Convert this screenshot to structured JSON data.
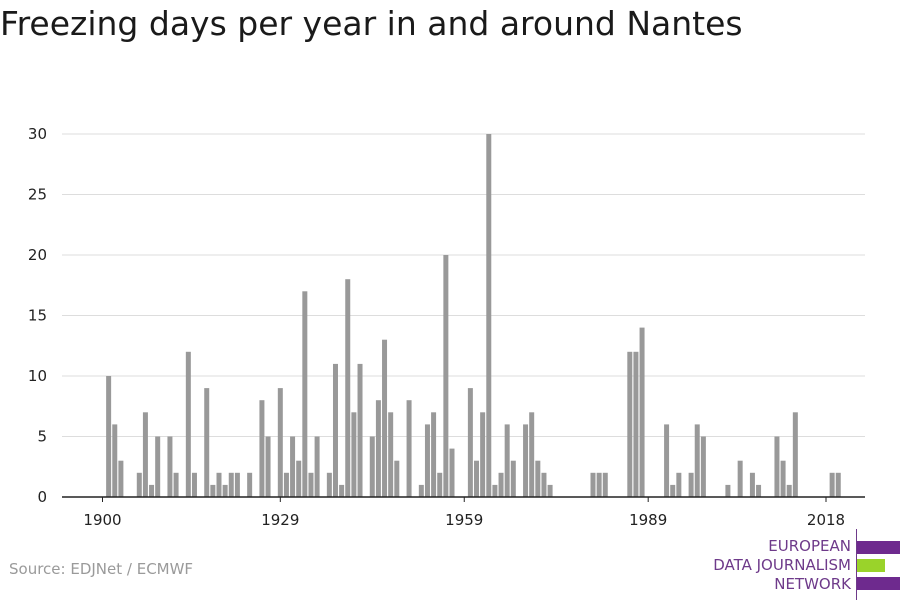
{
  "title": "Freezing days per year in and around Nantes",
  "source": "Source: EDJNet / ECMWF",
  "logo": {
    "lines": [
      "EUROPEAN",
      "DATA JOURNALISM",
      "NETWORK"
    ],
    "colors": {
      "purple": "#6e2a8e",
      "green": "#9ad32a"
    }
  },
  "colors": {
    "bar": "#999999",
    "grid": "#dddddd",
    "axis": "#222222"
  },
  "chart_data": {
    "type": "bar",
    "title": "Freezing days per year in and around Nantes",
    "xlabel": "",
    "ylabel": "",
    "ylim": [
      0,
      30
    ],
    "y_ticks": [
      0,
      5,
      10,
      15,
      20,
      25,
      30
    ],
    "x_ticks": [
      1900,
      1929,
      1959,
      1989,
      2018
    ],
    "grid": true,
    "years": [
      1900,
      1901,
      1902,
      1903,
      1904,
      1905,
      1906,
      1907,
      1908,
      1909,
      1910,
      1911,
      1912,
      1913,
      1914,
      1915,
      1916,
      1917,
      1918,
      1919,
      1920,
      1921,
      1922,
      1923,
      1924,
      1925,
      1926,
      1927,
      1928,
      1929,
      1930,
      1931,
      1932,
      1933,
      1934,
      1935,
      1936,
      1937,
      1938,
      1939,
      1940,
      1941,
      1942,
      1943,
      1944,
      1945,
      1946,
      1947,
      1948,
      1949,
      1950,
      1951,
      1952,
      1953,
      1954,
      1955,
      1956,
      1957,
      1958,
      1959,
      1960,
      1961,
      1962,
      1963,
      1964,
      1965,
      1966,
      1967,
      1968,
      1969,
      1970,
      1971,
      1972,
      1973,
      1974,
      1975,
      1976,
      1977,
      1978,
      1979,
      1980,
      1981,
      1982,
      1983,
      1984,
      1985,
      1986,
      1987,
      1988,
      1989,
      1990,
      1991,
      1992,
      1993,
      1994,
      1995,
      1996,
      1997,
      1998,
      1999,
      2000,
      2001,
      2002,
      2003,
      2004,
      2005,
      2006,
      2007,
      2008,
      2009,
      2010,
      2011,
      2012,
      2013,
      2014,
      2015,
      2016,
      2017,
      2018,
      2019,
      2020
    ],
    "values": [
      0,
      10,
      6,
      3,
      0,
      0,
      2,
      7,
      1,
      5,
      0,
      5,
      2,
      0,
      12,
      2,
      0,
      9,
      1,
      2,
      1,
      2,
      2,
      0,
      2,
      0,
      8,
      5,
      0,
      9,
      2,
      5,
      3,
      17,
      2,
      5,
      0,
      2,
      11,
      1,
      18,
      7,
      11,
      0,
      5,
      8,
      13,
      7,
      3,
      0,
      8,
      0,
      1,
      6,
      7,
      2,
      20,
      4,
      0,
      0,
      9,
      3,
      7,
      30,
      1,
      2,
      6,
      3,
      0,
      6,
      7,
      3,
      2,
      1,
      0,
      0,
      0,
      0,
      0,
      0,
      2,
      2,
      2,
      0,
      0,
      0,
      12,
      12,
      14,
      0,
      0,
      0,
      6,
      1,
      2,
      0,
      2,
      6,
      5,
      0,
      0,
      0,
      1,
      0,
      3,
      0,
      2,
      1,
      0,
      0,
      5,
      3,
      1,
      7,
      0,
      0,
      0,
      0,
      0,
      2,
      2
    ]
  }
}
